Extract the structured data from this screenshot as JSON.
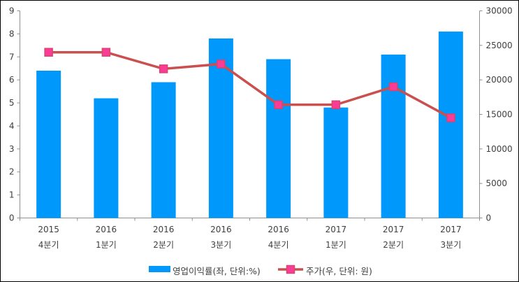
{
  "chart_data": {
    "type": "combo-bar-line",
    "title": "",
    "categories": [
      {
        "year": "2015",
        "quarter": "4분기"
      },
      {
        "year": "2016",
        "quarter": "1분기"
      },
      {
        "year": "2016",
        "quarter": "2분기"
      },
      {
        "year": "2016",
        "quarter": "3분기"
      },
      {
        "year": "2016",
        "quarter": "4분기"
      },
      {
        "year": "2017",
        "quarter": "1분기"
      },
      {
        "year": "2017",
        "quarter": "2분기"
      },
      {
        "year": "2017",
        "quarter": "3분기"
      }
    ],
    "series": [
      {
        "name": "영업이익률(좌, 단위:%)",
        "type": "bar",
        "axis": "left",
        "color": "#0099fb",
        "values": [
          6.4,
          5.2,
          5.9,
          7.8,
          6.9,
          4.8,
          7.1,
          8.1
        ]
      },
      {
        "name": "주가(우, 단위: 원)",
        "type": "line",
        "axis": "right",
        "color": "#c9504e",
        "marker": "square",
        "marker_fill": "#fa3c96",
        "marker_stroke": "#d8446e",
        "values": [
          24000,
          24000,
          21600,
          22300,
          16400,
          16400,
          19000,
          14500
        ]
      }
    ],
    "left_axis": {
      "min": 0,
      "max": 9,
      "step": 1,
      "ticks": [
        "0",
        "1",
        "2",
        "3",
        "4",
        "5",
        "6",
        "7",
        "8",
        "9"
      ]
    },
    "right_axis": {
      "min": 0,
      "max": 30000,
      "step": 5000,
      "ticks": [
        "0",
        "5000",
        "10000",
        "15000",
        "20000",
        "25000",
        "30000"
      ]
    },
    "grid": false,
    "legend_position": "bottom",
    "axis_color": "#8e8e8e",
    "text_color": "#3f3f3f",
    "background": "#ffffff",
    "border_color": "#000000"
  }
}
